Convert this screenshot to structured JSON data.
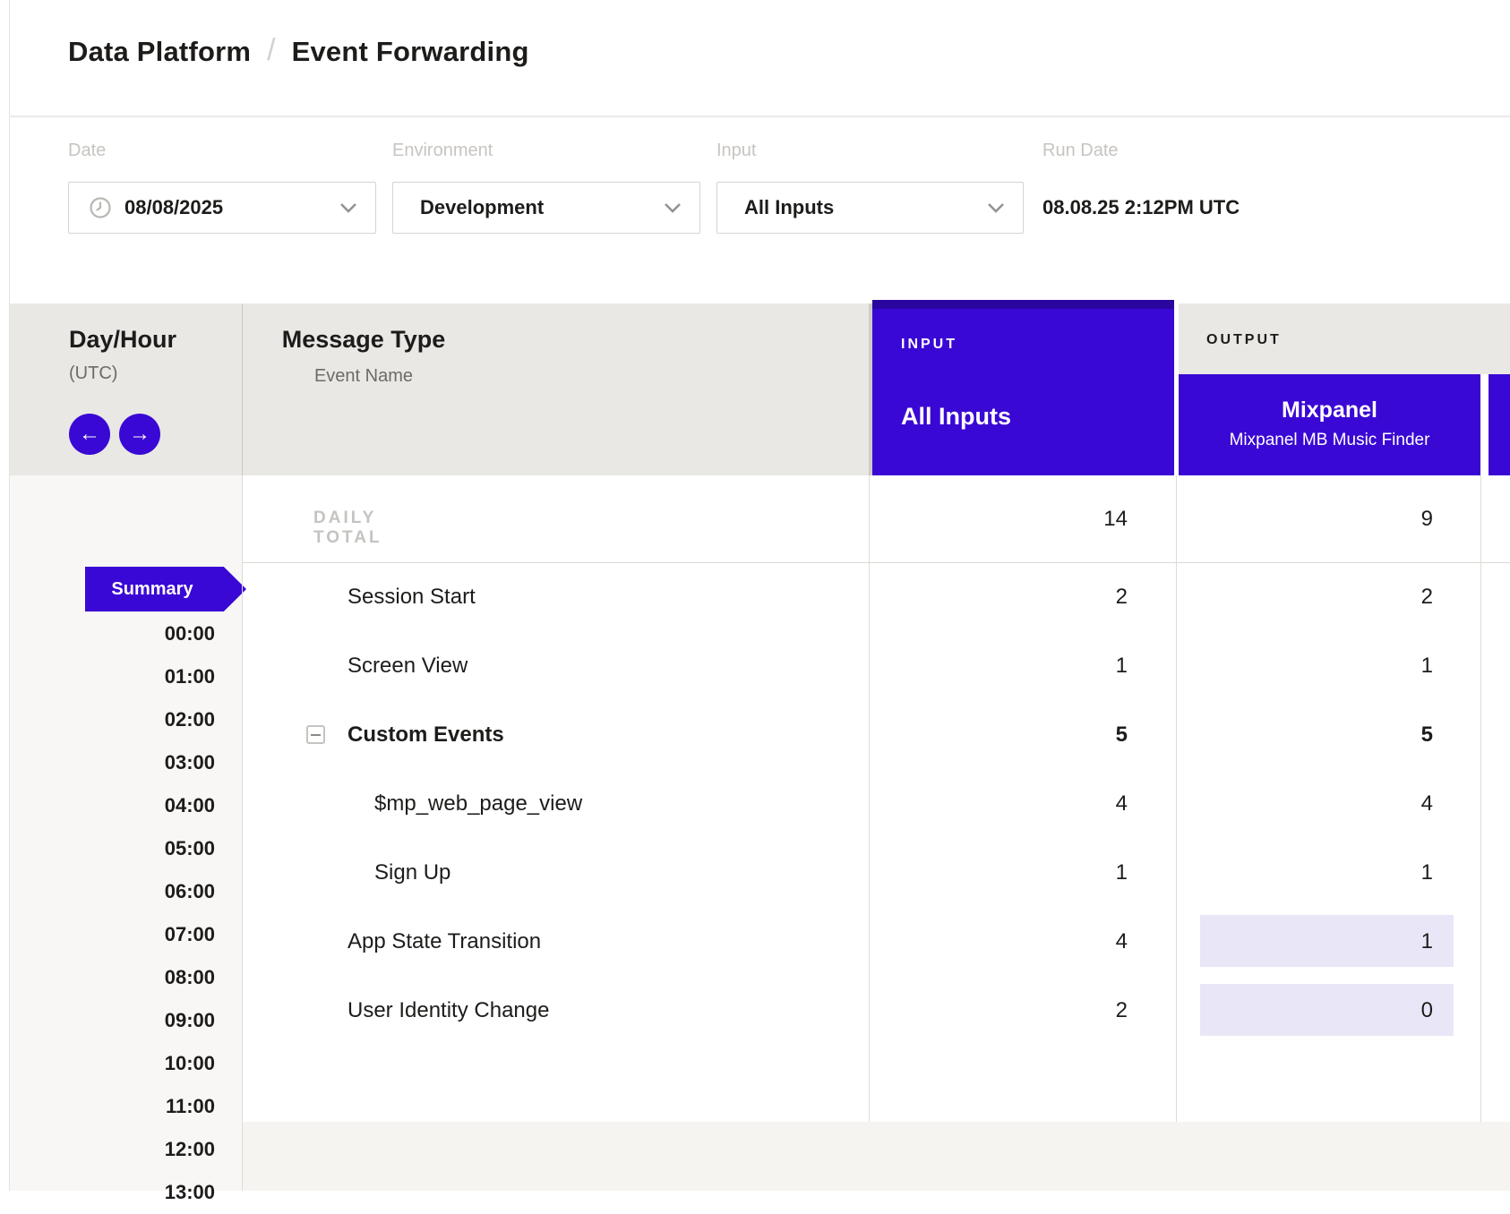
{
  "page": {
    "breadcrumb": {
      "parent": "Data Platform",
      "separator": "/",
      "current": "Event Forwarding"
    }
  },
  "filters": {
    "date": {
      "label": "Date",
      "value": "08/08/2025"
    },
    "environment": {
      "label": "Environment",
      "value": "Development"
    },
    "input": {
      "label": "Input",
      "value": "All Inputs"
    },
    "run_date": {
      "label": "Run Date",
      "value": "08.08.25 2:12PM UTC"
    }
  },
  "grid": {
    "day_hour_header": {
      "title": "Day/Hour",
      "subtitle": "(UTC)",
      "prev_icon": "←",
      "next_icon": "→"
    },
    "message_type_header": {
      "title": "Message Type",
      "subtitle": "Event Name"
    },
    "input_header": {
      "eyebrow": "INPUT",
      "title": "All Inputs"
    },
    "output_header": {
      "eyebrow": "OUTPUT",
      "title": "Mixpanel",
      "subtitle": "Mixpanel MB Music Finder"
    },
    "summary_tab": "Summary",
    "hours": [
      "00:00",
      "01:00",
      "02:00",
      "03:00",
      "04:00",
      "05:00",
      "06:00",
      "07:00",
      "08:00",
      "09:00",
      "10:00",
      "11:00",
      "12:00",
      "13:00"
    ],
    "daily_total_row": {
      "label": "DAILY TOTAL",
      "input_value": "14",
      "output_value": "9"
    },
    "rows": [
      {
        "name": "Session Start",
        "input_value": "2",
        "output_value": "2",
        "indent": 0,
        "bold": false,
        "collapsible": false,
        "output_highlighted": false
      },
      {
        "name": "Screen View",
        "input_value": "1",
        "output_value": "1",
        "indent": 0,
        "bold": false,
        "collapsible": false,
        "output_highlighted": false
      },
      {
        "name": "Custom Events",
        "input_value": "5",
        "output_value": "5",
        "indent": 0,
        "bold": true,
        "collapsible": true,
        "output_highlighted": false
      },
      {
        "name": "$mp_web_page_view",
        "input_value": "4",
        "output_value": "4",
        "indent": 1,
        "bold": false,
        "collapsible": false,
        "output_highlighted": false
      },
      {
        "name": "Sign Up",
        "input_value": "1",
        "output_value": "1",
        "indent": 1,
        "bold": false,
        "collapsible": false,
        "output_highlighted": false
      },
      {
        "name": "App State Transition",
        "input_value": "4",
        "output_value": "1",
        "indent": 0,
        "bold": false,
        "collapsible": false,
        "output_highlighted": true
      },
      {
        "name": "User Identity Change",
        "input_value": "2",
        "output_value": "0",
        "indent": 0,
        "bold": false,
        "collapsible": false,
        "output_highlighted": true
      }
    ]
  },
  "colors": {
    "accent_purple": "#3a08d4",
    "accent_purple_dark": "#2a069e",
    "highlight_lavender": "#e9e6f8",
    "header_band_gray": "#e9e8e5",
    "left_column_gray": "#f8f7f5",
    "footer_band_gray": "#f5f4f1"
  }
}
